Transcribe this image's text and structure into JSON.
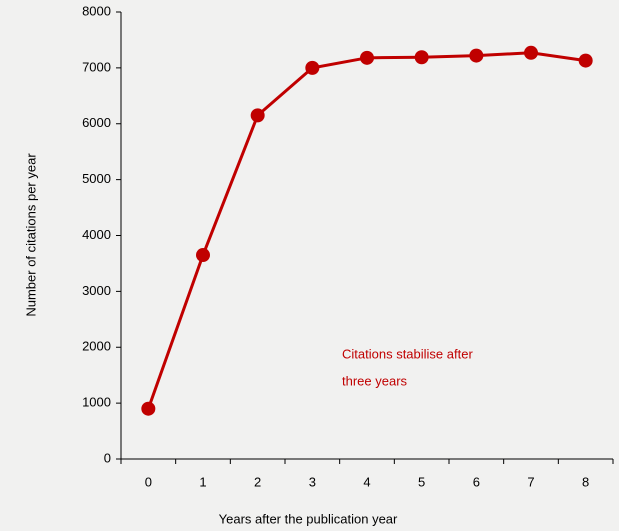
{
  "chart_data": {
    "type": "line",
    "x_label": "Years after the publication year",
    "y_label": "Number of citations per year",
    "annotation": [
      "Citations stabilise after",
      "three years"
    ],
    "annotation_color": "#c00000",
    "categories": [
      "0",
      "1",
      "2",
      "3",
      "4",
      "5",
      "6",
      "7",
      "8"
    ],
    "series": [
      {
        "color": "#c00000",
        "values": [
          900,
          3650,
          6150,
          7000,
          7180,
          7190,
          7220,
          7270,
          7130
        ]
      }
    ],
    "ylim": [
      0,
      8000
    ],
    "yticks": [
      0,
      1000,
      2000,
      3000,
      4000,
      5000,
      6000,
      7000,
      8000
    ],
    "grid": false
  }
}
